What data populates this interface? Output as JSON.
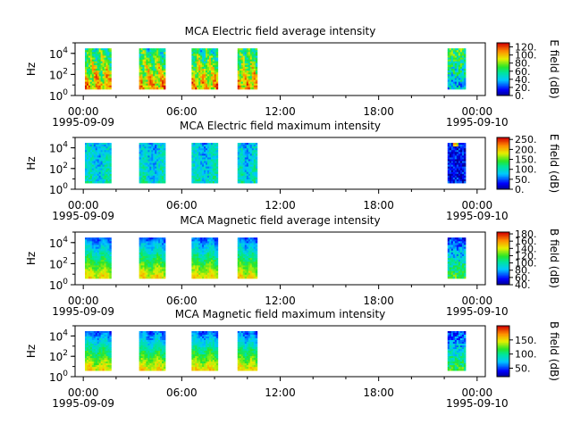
{
  "chart_data": [
    {
      "type": "heatmap",
      "title": "MCA  Electric field average intensity",
      "ylabel": "Hz",
      "yscale": "log",
      "ylim": [
        1,
        100000
      ],
      "y_ticks": [
        {
          "base": "10",
          "exp": "0"
        },
        {
          "base": "10",
          "exp": "2"
        },
        {
          "base": "10",
          "exp": "4"
        }
      ],
      "x_ticks": [
        {
          "time": "00:00",
          "date": "1995-09-09"
        },
        {
          "time": "06:00",
          "date": ""
        },
        {
          "time": "12:00",
          "date": ""
        },
        {
          "time": "18:00",
          "date": ""
        },
        {
          "time": "00:00",
          "date": "1995-09-10"
        }
      ],
      "x_range_hours": [
        -0.5,
        24.5
      ],
      "colorbar": {
        "label": "E field (dB)",
        "range": [
          0,
          130
        ],
        "ticks": [
          "0.",
          "20.",
          "40.",
          "60.",
          "80.",
          "100.",
          "120."
        ]
      },
      "data_blocks_hours": [
        [
          0.1,
          1.7
        ],
        [
          3.4,
          5.0
        ],
        [
          6.6,
          8.2
        ],
        [
          9.4,
          10.6
        ],
        [
          22.2,
          23.3
        ]
      ],
      "data_freq_range": [
        4,
        30000
      ],
      "character": "high"
    },
    {
      "type": "heatmap",
      "title": "MCA  Electric field maximum intensity",
      "ylabel": "Hz",
      "yscale": "log",
      "ylim": [
        1,
        100000
      ],
      "y_ticks": [
        {
          "base": "10",
          "exp": "0"
        },
        {
          "base": "10",
          "exp": "2"
        },
        {
          "base": "10",
          "exp": "4"
        }
      ],
      "x_ticks": [
        {
          "time": "00:00",
          "date": "1995-09-09"
        },
        {
          "time": "06:00",
          "date": ""
        },
        {
          "time": "12:00",
          "date": ""
        },
        {
          "time": "18:00",
          "date": ""
        },
        {
          "time": "00:00",
          "date": "1995-09-10"
        }
      ],
      "x_range_hours": [
        -0.5,
        24.5
      ],
      "colorbar": {
        "label": "E field (dB)",
        "range": [
          0,
          260
        ],
        "ticks": [
          "0.",
          "50.",
          "100.",
          "150.",
          "200.",
          "250."
        ]
      },
      "data_blocks_hours": [
        [
          0.1,
          1.7
        ],
        [
          3.4,
          5.0
        ],
        [
          6.6,
          8.2
        ],
        [
          9.4,
          10.6
        ],
        [
          22.2,
          23.3
        ]
      ],
      "data_freq_range": [
        4,
        30000
      ],
      "character": "low"
    },
    {
      "type": "heatmap",
      "title": "MCA  Magnetic field average intensity",
      "ylabel": "Hz",
      "yscale": "log",
      "ylim": [
        1,
        100000
      ],
      "y_ticks": [
        {
          "base": "10",
          "exp": "0"
        },
        {
          "base": "10",
          "exp": "2"
        },
        {
          "base": "10",
          "exp": "4"
        }
      ],
      "x_ticks": [
        {
          "time": "00:00",
          "date": "1995-09-09"
        },
        {
          "time": "06:00",
          "date": ""
        },
        {
          "time": "12:00",
          "date": ""
        },
        {
          "time": "18:00",
          "date": ""
        },
        {
          "time": "00:00",
          "date": "1995-09-10"
        }
      ],
      "x_range_hours": [
        -0.5,
        24.5
      ],
      "colorbar": {
        "label": "B field (dB)",
        "range": [
          40,
          185
        ],
        "ticks": [
          "40.",
          "60.",
          "80.",
          "100.",
          "120.",
          "140.",
          "160.",
          "180."
        ]
      },
      "data_blocks_hours": [
        [
          0.1,
          1.7
        ],
        [
          3.4,
          5.0
        ],
        [
          6.6,
          8.2
        ],
        [
          9.4,
          10.6
        ],
        [
          22.2,
          23.3
        ]
      ],
      "data_freq_range": [
        4,
        30000
      ],
      "character": "magnetic"
    },
    {
      "type": "heatmap",
      "title": "MCA  Magnetic field maximum intensity",
      "ylabel": "Hz",
      "yscale": "log",
      "ylim": [
        1,
        100000
      ],
      "y_ticks": [
        {
          "base": "10",
          "exp": "0"
        },
        {
          "base": "10",
          "exp": "2"
        },
        {
          "base": "10",
          "exp": "4"
        }
      ],
      "x_ticks": [
        {
          "time": "00:00",
          "date": "1995-09-09"
        },
        {
          "time": "06:00",
          "date": ""
        },
        {
          "time": "12:00",
          "date": ""
        },
        {
          "time": "18:00",
          "date": ""
        },
        {
          "time": "00:00",
          "date": "1995-09-10"
        }
      ],
      "x_range_hours": [
        -0.5,
        24.5
      ],
      "colorbar": {
        "label": "B field (dB)",
        "range": [
          20,
          200
        ],
        "ticks": [
          "50.",
          "100.",
          "150."
        ]
      },
      "data_blocks_hours": [
        [
          0.1,
          1.7
        ],
        [
          3.4,
          5.0
        ],
        [
          6.6,
          8.2
        ],
        [
          9.4,
          10.6
        ],
        [
          22.2,
          23.3
        ]
      ],
      "data_freq_range": [
        4,
        30000
      ],
      "character": "magnetic"
    }
  ]
}
